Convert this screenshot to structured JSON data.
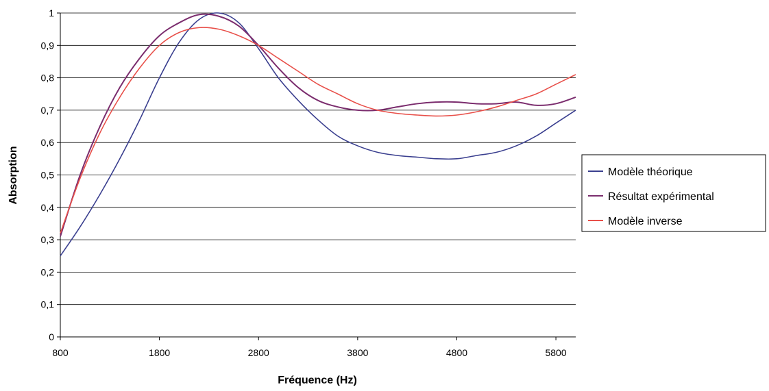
{
  "chart_data": {
    "type": "line",
    "title": "",
    "xlabel": "Fréquence (Hz)",
    "ylabel": "Absorption",
    "xlim": [
      800,
      6000
    ],
    "ylim": [
      0,
      1
    ],
    "x_ticks": [
      800,
      1800,
      2800,
      3800,
      4800,
      5800
    ],
    "x_tick_labels": [
      "800",
      "1800",
      "2800",
      "3800",
      "4800",
      "5800"
    ],
    "y_ticks": [
      0,
      0.1,
      0.2,
      0.3,
      0.4,
      0.5,
      0.6,
      0.7,
      0.8,
      0.9,
      1
    ],
    "y_tick_labels": [
      "0",
      "0,1",
      "0,2",
      "0,3",
      "0,4",
      "0,5",
      "0,6",
      "0,7",
      "0,8",
      "0,9",
      "1"
    ],
    "grid": "horizontal",
    "legend_position": "right",
    "series": [
      {
        "name": "Modèle théorique",
        "color": "#3a3f8f",
        "x": [
          800,
          1000,
          1200,
          1400,
          1600,
          1800,
          2000,
          2200,
          2400,
          2600,
          2800,
          3000,
          3200,
          3400,
          3600,
          3800,
          4000,
          4200,
          4400,
          4600,
          4800,
          5000,
          5200,
          5400,
          5600,
          5800,
          6000
        ],
        "y": [
          0.25,
          0.34,
          0.44,
          0.55,
          0.67,
          0.8,
          0.91,
          0.98,
          1.0,
          0.97,
          0.89,
          0.8,
          0.73,
          0.67,
          0.62,
          0.59,
          0.57,
          0.56,
          0.555,
          0.55,
          0.55,
          0.56,
          0.57,
          0.59,
          0.62,
          0.66,
          0.7
        ]
      },
      {
        "name": "Résultat expérimental",
        "color": "#7b2d6e",
        "x": [
          800,
          1000,
          1200,
          1400,
          1600,
          1800,
          2000,
          2200,
          2400,
          2600,
          2800,
          3000,
          3200,
          3400,
          3600,
          3800,
          4000,
          4200,
          4400,
          4600,
          4800,
          5000,
          5200,
          5400,
          5600,
          5800,
          6000
        ],
        "y": [
          0.31,
          0.5,
          0.65,
          0.77,
          0.86,
          0.93,
          0.97,
          0.995,
          0.99,
          0.96,
          0.9,
          0.83,
          0.77,
          0.73,
          0.71,
          0.7,
          0.7,
          0.71,
          0.72,
          0.725,
          0.725,
          0.72,
          0.72,
          0.725,
          0.715,
          0.72,
          0.74
        ]
      },
      {
        "name": "Modèle inverse",
        "color": "#e8504a",
        "x": [
          800,
          1000,
          1200,
          1400,
          1600,
          1800,
          2000,
          2200,
          2400,
          2600,
          2800,
          3000,
          3200,
          3400,
          3600,
          3800,
          4000,
          4200,
          4400,
          4600,
          4800,
          5000,
          5200,
          5400,
          5600,
          5800,
          6000
        ],
        "y": [
          0.32,
          0.49,
          0.63,
          0.74,
          0.83,
          0.9,
          0.94,
          0.955,
          0.95,
          0.93,
          0.9,
          0.86,
          0.82,
          0.78,
          0.75,
          0.72,
          0.7,
          0.69,
          0.685,
          0.682,
          0.685,
          0.695,
          0.71,
          0.73,
          0.75,
          0.78,
          0.81
        ]
      }
    ]
  }
}
